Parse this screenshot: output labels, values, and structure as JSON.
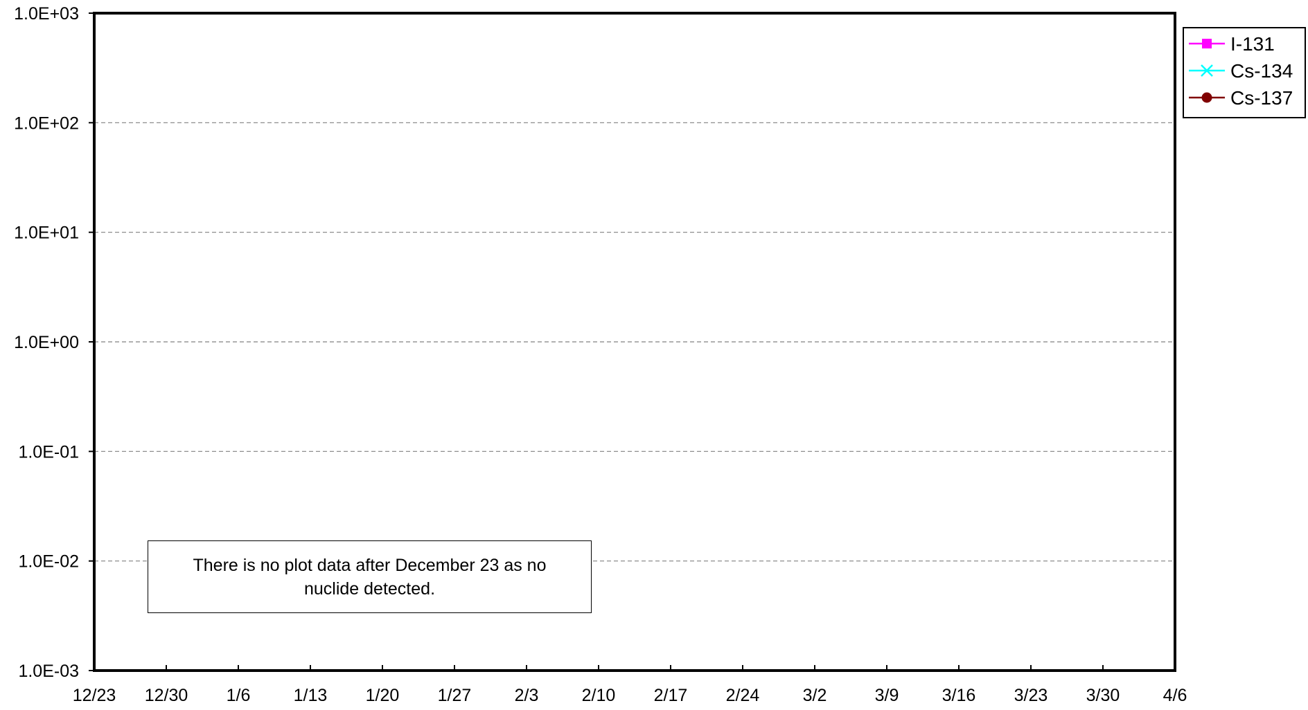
{
  "chart_data": {
    "type": "line",
    "title": "",
    "xlabel": "",
    "ylabel": "",
    "y_scale": "log",
    "ylim": [
      0.001,
      1000
    ],
    "y_tick_labels": [
      "1.0E+03",
      "1.0E+02",
      "1.0E+01",
      "1.0E+00",
      "1.0E-01",
      "1.0E-02",
      "1.0E-03"
    ],
    "y_tick_values": [
      1000,
      100,
      10,
      1,
      0.1,
      0.01,
      0.001
    ],
    "x_tick_labels": [
      "12/23",
      "12/30",
      "1/6",
      "1/13",
      "1/20",
      "1/27",
      "2/3",
      "2/10",
      "2/17",
      "2/24",
      "3/2",
      "3/9",
      "3/16",
      "3/23",
      "3/30",
      "4/6"
    ],
    "grid": "horizontal dashed",
    "legend_position": "top-right outside",
    "series": [
      {
        "name": "I-131",
        "color": "#ff00ff",
        "marker": "square",
        "values": []
      },
      {
        "name": "Cs-134",
        "color": "#00ffff",
        "marker": "x",
        "values": []
      },
      {
        "name": "Cs-137",
        "color": "#800000",
        "marker": "circle",
        "values": []
      }
    ],
    "annotation": "There is no plot data after December 23 as no nuclide detected."
  }
}
